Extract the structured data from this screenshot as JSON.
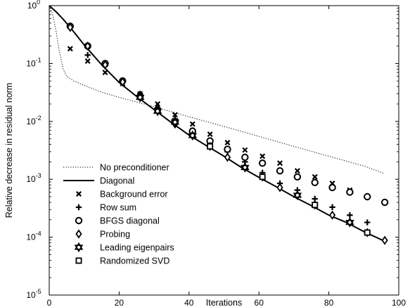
{
  "chart_data": {
    "type": "line",
    "xlabel": "Iterations",
    "ylabel": "Relative decrease in residual norm",
    "xlim": [
      0,
      100
    ],
    "ylim_log10": [
      -5,
      0
    ],
    "yscale": "log",
    "grid": false,
    "legend_position": "bottom-left",
    "x_ticks": [
      "0",
      "20",
      "40",
      "60",
      "80",
      "100"
    ],
    "y_ticks": [
      {
        "base": "10",
        "exp": "-5",
        "exponent": -5
      },
      {
        "base": "10",
        "exp": "-4",
        "exponent": -4
      },
      {
        "base": "10",
        "exp": "-3",
        "exponent": -3
      },
      {
        "base": "10",
        "exp": "-2",
        "exponent": -2
      },
      {
        "base": "10",
        "exp": "-1",
        "exponent": -1
      },
      {
        "base": "10",
        "exp": "0",
        "exponent": 0
      }
    ],
    "series": [
      {
        "name": "No preconditioner",
        "style": "dotted",
        "x": [
          0,
          1,
          2,
          3,
          4,
          5,
          7,
          10,
          15,
          20,
          30,
          40,
          50,
          60,
          70,
          80,
          90,
          96
        ],
        "y": [
          1.0,
          0.7,
          0.35,
          0.15,
          0.08,
          0.06,
          0.05,
          0.042,
          0.032,
          0.026,
          0.018,
          0.012,
          0.0082,
          0.0055,
          0.0037,
          0.0025,
          0.0017,
          0.00125
        ]
      },
      {
        "name": "Diagonal",
        "style": "solid",
        "x": [
          0,
          2,
          4,
          6,
          10,
          15,
          20,
          25,
          30,
          35,
          40,
          45,
          50,
          55,
          60,
          65,
          70,
          75,
          80,
          85,
          90,
          96
        ],
        "y": [
          1.0,
          0.78,
          0.58,
          0.42,
          0.21,
          0.095,
          0.047,
          0.027,
          0.016,
          0.0095,
          0.0058,
          0.0038,
          0.0025,
          0.0016,
          0.00108,
          0.00074,
          0.0005,
          0.00035,
          0.00024,
          0.00018,
          0.000125,
          8.5e-05
        ]
      },
      {
        "name": "Background error",
        "marker": "x",
        "x": [
          6,
          11,
          16,
          21,
          26,
          31,
          36,
          41,
          46,
          51,
          56,
          61,
          66,
          71,
          76,
          81,
          86,
          91,
          96
        ],
        "y": [
          0.18,
          0.11,
          0.07,
          0.045,
          0.03,
          0.02,
          0.013,
          0.009,
          0.006,
          0.0043,
          0.0032,
          0.0025,
          0.0019,
          0.0014,
          0.0011,
          0.00085,
          0.00065,
          0.0005,
          0.0004
        ]
      },
      {
        "name": "Row sum",
        "marker": "+",
        "x": [
          11,
          16,
          21,
          26,
          31,
          36,
          41,
          46,
          51,
          56,
          61,
          66,
          71,
          76,
          81,
          86,
          91
        ],
        "y": [
          0.14,
          0.09,
          0.05,
          0.03,
          0.017,
          0.011,
          0.007,
          0.0045,
          0.003,
          0.002,
          0.0013,
          0.00085,
          0.00065,
          0.00046,
          0.00033,
          0.00024,
          0.00018
        ]
      },
      {
        "name": "BFGS diagonal",
        "marker": "o",
        "x": [
          6,
          11,
          16,
          21,
          26,
          31,
          36,
          41,
          46,
          51,
          56,
          61,
          66,
          71,
          76,
          81,
          86,
          91,
          96
        ],
        "y": [
          0.44,
          0.2,
          0.1,
          0.05,
          0.027,
          0.016,
          0.01,
          0.0068,
          0.0046,
          0.0033,
          0.0024,
          0.0019,
          0.0014,
          0.0011,
          0.00088,
          0.00072,
          0.0006,
          0.0005,
          0.0004
        ]
      },
      {
        "name": "Probing",
        "marker": "diamond",
        "x": [
          6,
          11,
          16,
          21,
          26,
          31,
          36,
          41,
          46,
          51,
          56,
          61,
          66,
          71,
          76,
          81,
          86,
          91,
          96
        ],
        "y": [
          0.42,
          0.2,
          0.095,
          0.048,
          0.026,
          0.016,
          0.009,
          0.0057,
          0.0037,
          0.0024,
          0.0016,
          0.0011,
          0.00072,
          0.00053,
          0.00036,
          0.00024,
          0.00018,
          0.00012,
          8.8e-05
        ]
      },
      {
        "name": "Leading eigenpairs",
        "marker": "hexagram",
        "x": [
          26,
          31,
          36,
          41,
          56,
          71,
          86
        ],
        "y": [
          0.026,
          0.015,
          0.0097,
          0.0057,
          0.0016,
          0.00053,
          0.00018
        ]
      },
      {
        "name": "Randomized SVD",
        "marker": "square",
        "x": [
          46,
          61,
          76,
          91
        ],
        "y": [
          0.0037,
          0.0011,
          0.00036,
          0.00012
        ]
      }
    ]
  }
}
